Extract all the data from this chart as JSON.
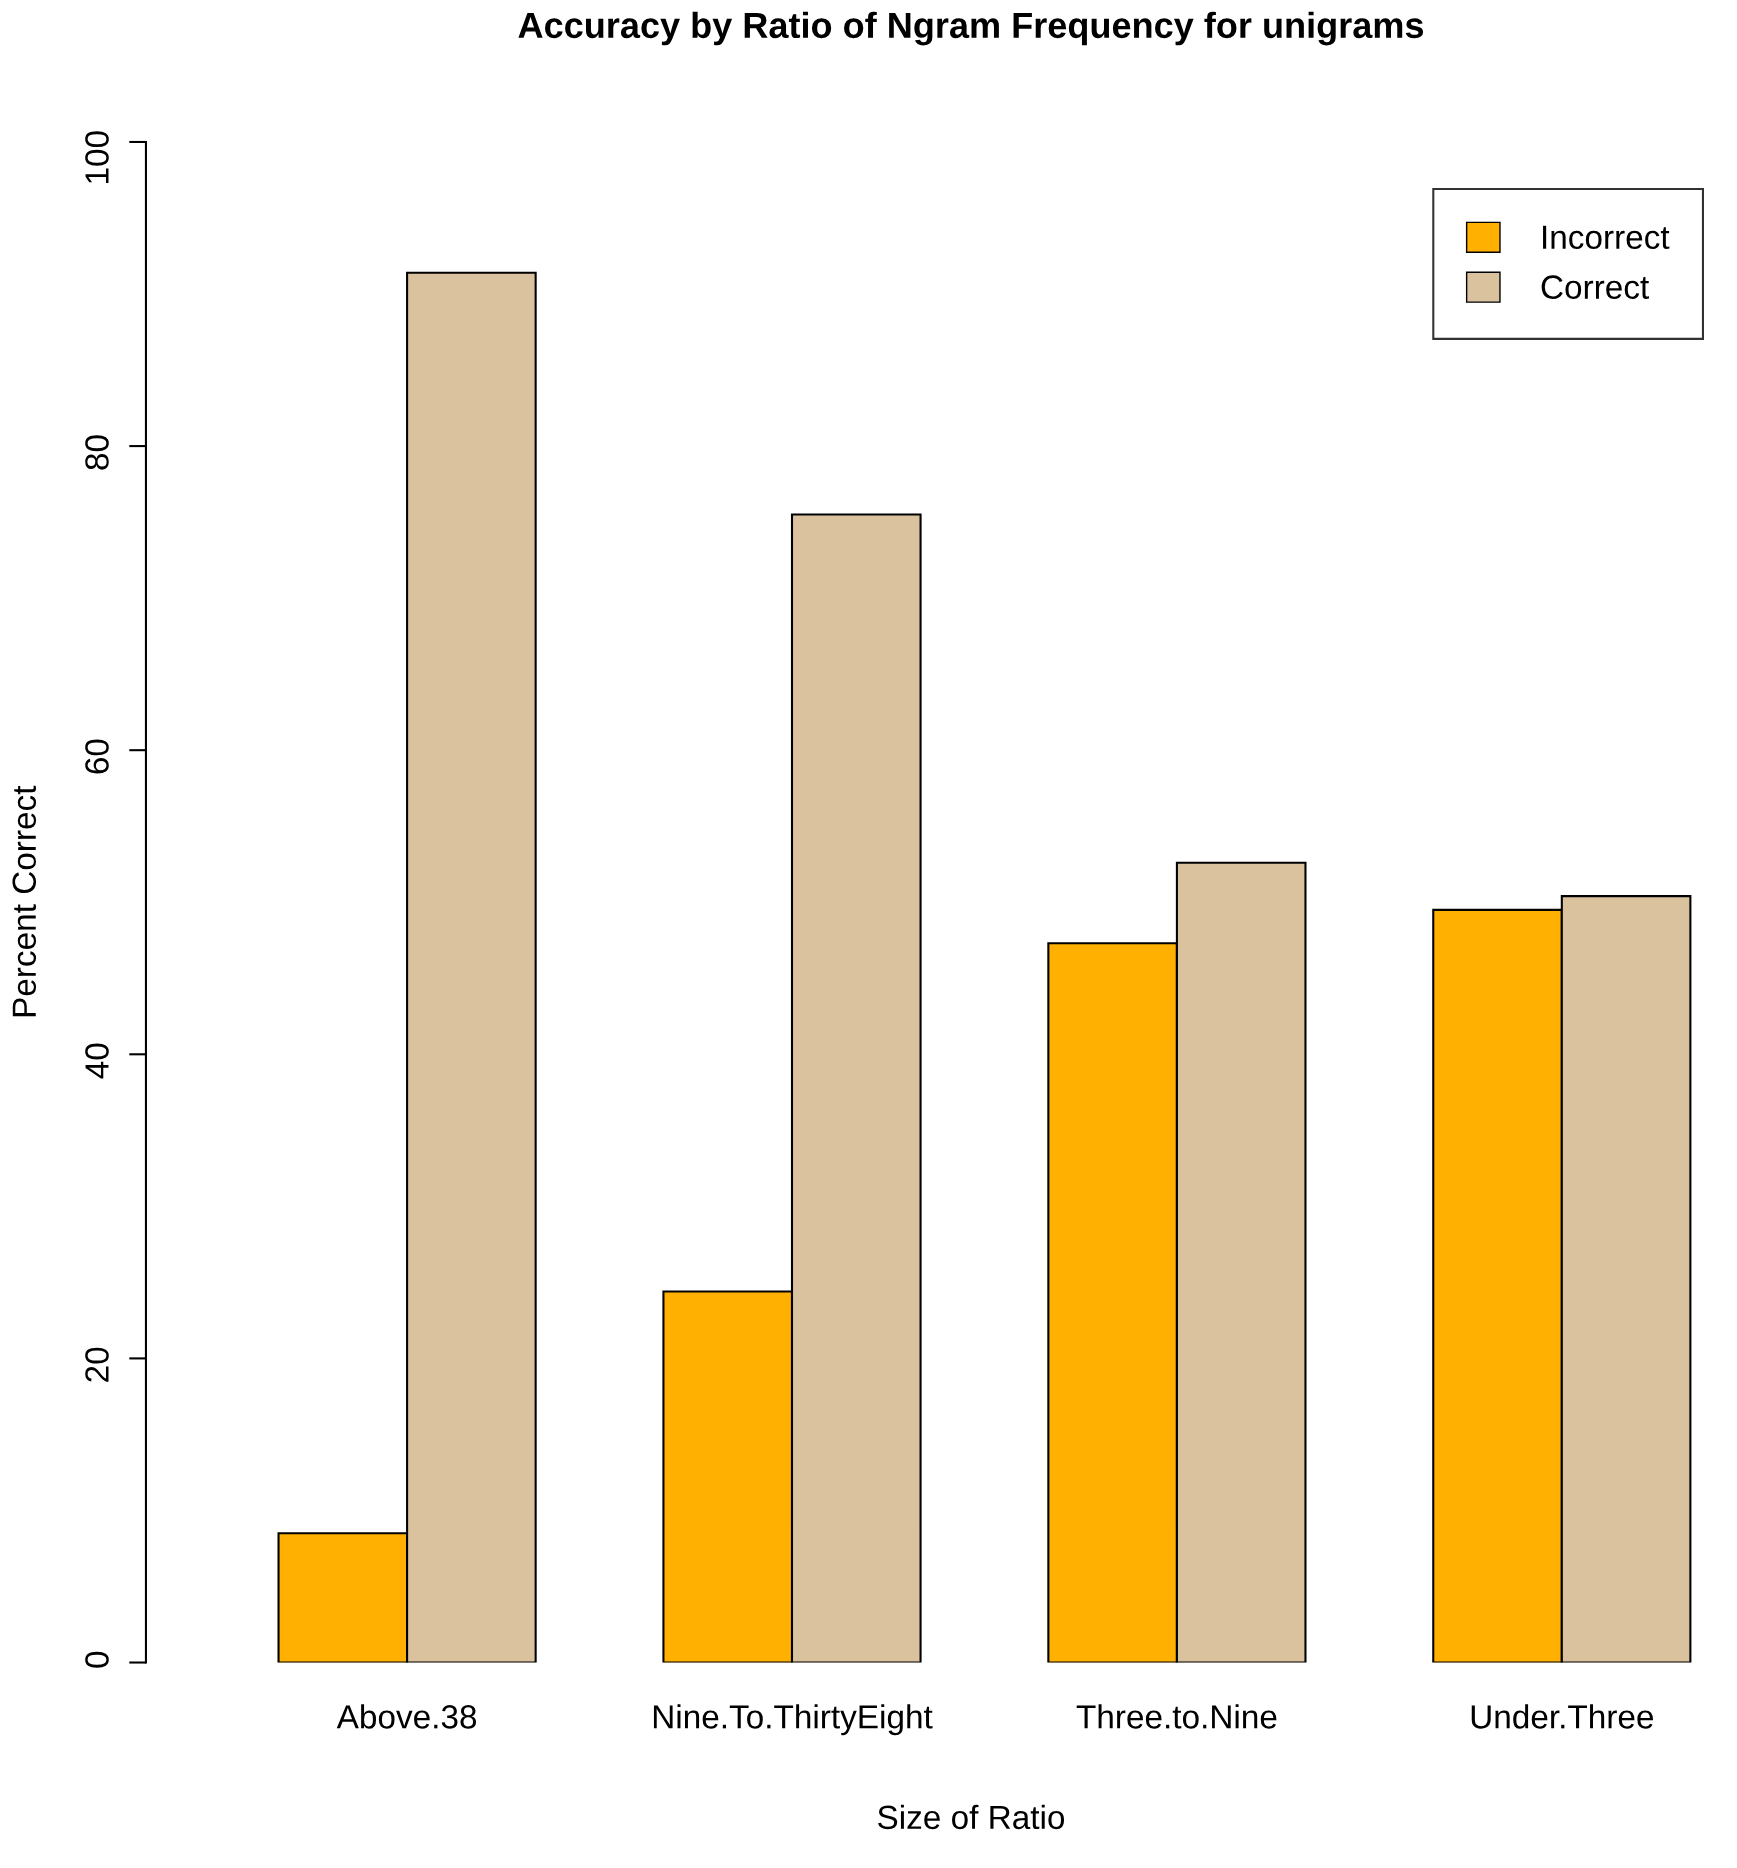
{
  "chart_data": {
    "type": "bar",
    "title": "Accuracy by Ratio of Ngram Frequency for unigrams",
    "xlabel": "Size of Ratio",
    "ylabel": "Percent Correct",
    "categories": [
      "Above.38",
      "Nine.To.ThirtyEight",
      "Three.to.Nine",
      "Under.Three"
    ],
    "series": [
      {
        "name": "Incorrect",
        "color": "#ffb000",
        "values": [
          8.5,
          24.4,
          47.3,
          49.5
        ]
      },
      {
        "name": "Correct",
        "color": "#dbc29e",
        "values": [
          91.4,
          75.5,
          52.6,
          50.4
        ]
      }
    ],
    "ylim": [
      0,
      100
    ],
    "yticks": [
      0,
      20,
      40,
      60,
      80,
      100
    ],
    "grid": false,
    "legend": "top right"
  }
}
